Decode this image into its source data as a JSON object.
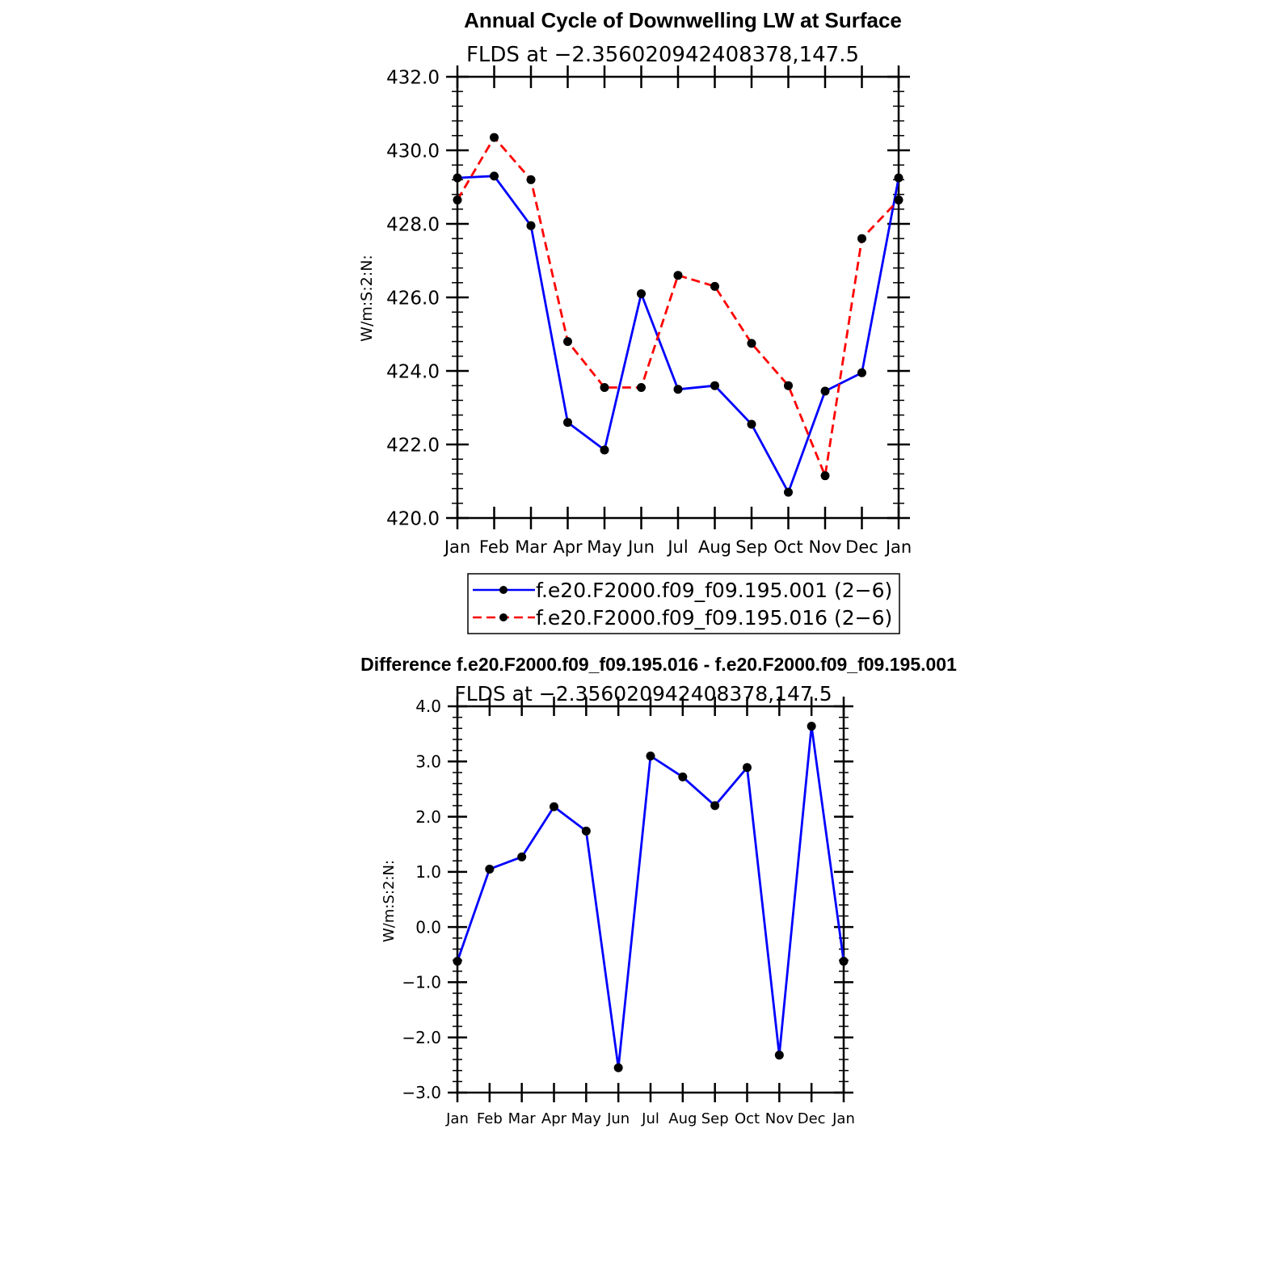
{
  "chart_data": [
    {
      "type": "line",
      "title": "Annual Cycle of Downwelling LW at Surface",
      "subtitle": "FLDS at −2.356020942408378,147.5",
      "ylabel": "W/m:S:2:N:",
      "ylim": [
        420,
        432
      ],
      "yticks": [
        "420.0",
        "422.0",
        "424.0",
        "426.0",
        "428.0",
        "430.0",
        "432.0"
      ],
      "categories": [
        "Jan",
        "Feb",
        "Mar",
        "Apr",
        "May",
        "Jun",
        "Jul",
        "Aug",
        "Sep",
        "Oct",
        "Nov",
        "Dec",
        "Jan"
      ],
      "legend": "bottom",
      "series": [
        {
          "name": "f.e20.F2000.f09_f09.195.001 (2−6)",
          "color": "#0000ff",
          "dash": "solid",
          "values": [
            429.25,
            429.3,
            427.95,
            422.6,
            421.85,
            426.1,
            423.5,
            423.6,
            422.55,
            420.7,
            423.45,
            423.95,
            429.25
          ]
        },
        {
          "name": "f.e20.F2000.f09_f09.195.016 (2−6)",
          "color": "#ff0000",
          "dash": "dashed",
          "values": [
            428.65,
            430.35,
            429.2,
            424.8,
            423.55,
            423.55,
            426.6,
            426.3,
            424.75,
            423.6,
            421.15,
            427.6,
            428.65
          ]
        }
      ]
    },
    {
      "type": "line",
      "title": "Difference f.e20.F2000.f09_f09.195.016 - f.e20.F2000.f09_f09.195.001",
      "subtitle": "FLDS at −2.356020942408378,147.5",
      "ylabel": "W/m:S:2:N:",
      "ylim": [
        -3,
        4
      ],
      "yticks": [
        "−3.0",
        "−2.0",
        "−1.0",
        "0.0",
        "1.0",
        "2.0",
        "3.0",
        "4.0"
      ],
      "categories": [
        "Jan",
        "Feb",
        "Mar",
        "Apr",
        "May",
        "Jun",
        "Jul",
        "Aug",
        "Sep",
        "Oct",
        "Nov",
        "Dec",
        "Jan"
      ],
      "series": [
        {
          "color": "#0000ff",
          "dash": "solid",
          "values": [
            -0.62,
            1.05,
            1.27,
            2.18,
            1.74,
            -2.55,
            3.1,
            2.72,
            2.2,
            2.89,
            -2.32,
            3.64,
            -0.62
          ]
        }
      ]
    }
  ]
}
